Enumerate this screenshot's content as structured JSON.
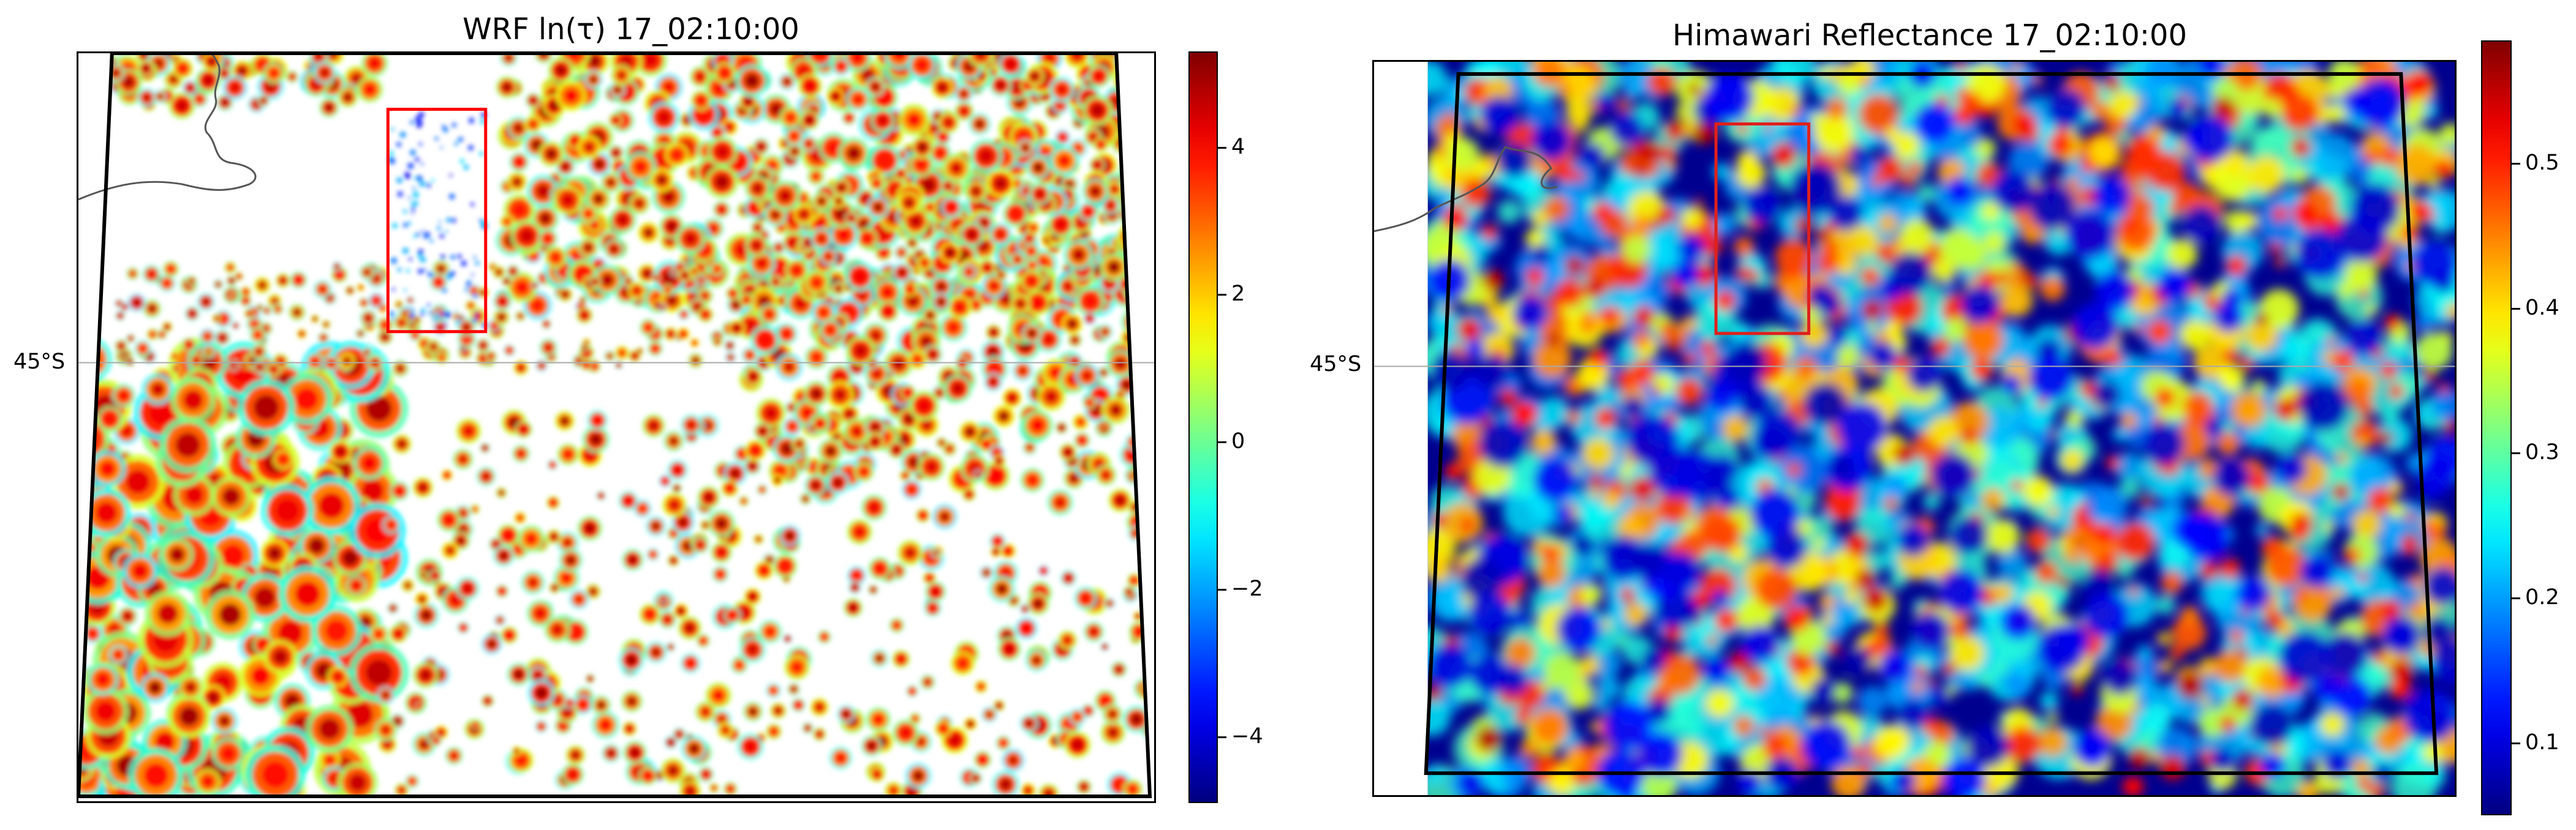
{
  "panels": [
    {
      "title": "WRF ln(τ) 17_02:10:00",
      "lat_label": "45°S",
      "colorbar": {
        "colormap": "jet",
        "min": -4.9,
        "max": 5.3,
        "ticks": [
          "−4",
          "−2",
          "0",
          "2",
          "4"
        ],
        "tick_values": [
          -4,
          -2,
          0,
          2,
          4
        ]
      },
      "background": "#ffffff",
      "highlight_box_color": "#ff0000"
    },
    {
      "title": "Himawari Reflectance 17_02:10:00",
      "lat_label": "45°S",
      "colorbar": {
        "colormap": "jet",
        "min": 0.05,
        "max": 0.585,
        "ticks": [
          "0.1",
          "0.2",
          "0.3",
          "0.4",
          "0.5"
        ],
        "tick_values": [
          0.1,
          0.2,
          0.3,
          0.4,
          0.5
        ]
      },
      "background": "#00008f",
      "highlight_box_color": "#ff0000"
    }
  ]
}
